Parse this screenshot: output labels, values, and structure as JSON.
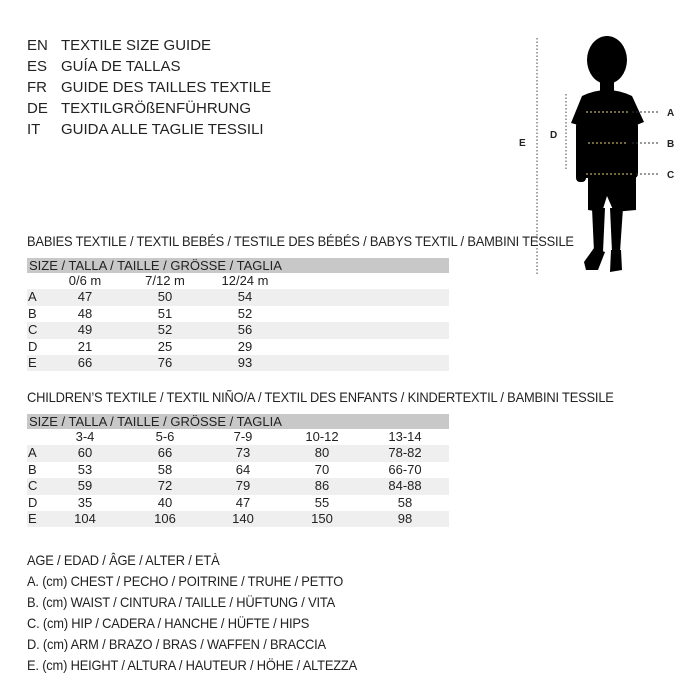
{
  "title_lines": [
    {
      "code": "EN",
      "text": "TEXTILE SIZE GUIDE"
    },
    {
      "code": "ES",
      "text": "GUÍA DE TALLAS"
    },
    {
      "code": "FR",
      "text": "GUIDE DES TAILLES TEXTILE"
    },
    {
      "code": "DE",
      "text": "TEXTILGRÖßENFÜHRUNG"
    },
    {
      "code": "IT",
      "text": "GUIDA ALLE TAGLIE TESSILI"
    }
  ],
  "figure": {
    "labels": {
      "A": "A",
      "B": "B",
      "C": "C",
      "D": "D",
      "E": "E"
    }
  },
  "babies": {
    "title": "BABIES TEXTILE / TEXTIL BEBÉS / TESTILE DES BÉBÉS / BABYS TEXTIL / BAMBINI TESSILE",
    "size_header": "SIZE / TALLA / TAILLE / GRÖSSE / TAGLIA",
    "columns": [
      "0/6 m",
      "7/12 m",
      "12/24 m"
    ],
    "rows": [
      {
        "label": "A",
        "values": [
          "47",
          "50",
          "54"
        ]
      },
      {
        "label": "B",
        "values": [
          "48",
          "51",
          "52"
        ]
      },
      {
        "label": "C",
        "values": [
          "49",
          "52",
          "56"
        ]
      },
      {
        "label": "D",
        "values": [
          "21",
          "25",
          "29"
        ]
      },
      {
        "label": "E",
        "values": [
          "66",
          "76",
          "93"
        ]
      }
    ]
  },
  "children": {
    "title": "CHILDREN’S TEXTILE / TEXTIL NIÑO/A / TEXTIL DES ENFANTS / KINDERTEXTIL / BAMBINI TESSILE",
    "size_header": "SIZE / TALLA / TAILLE / GRÖSSE / TAGLIA",
    "columns": [
      "3-4",
      "5-6",
      "7-9",
      "10-12",
      "13-14"
    ],
    "rows": [
      {
        "label": "A",
        "values": [
          "60",
          "66",
          "73",
          "80",
          "78-82"
        ]
      },
      {
        "label": "B",
        "values": [
          "53",
          "58",
          "64",
          "70",
          "66-70"
        ]
      },
      {
        "label": "C",
        "values": [
          "59",
          "72",
          "79",
          "86",
          "84-88"
        ]
      },
      {
        "label": "D",
        "values": [
          "35",
          "40",
          "47",
          "55",
          "58"
        ]
      },
      {
        "label": "E",
        "values": [
          "104",
          "106",
          "140",
          "150",
          "98"
        ]
      }
    ]
  },
  "legend": [
    "AGE / EDAD / ÂGE / ALTER / ETÀ",
    "A. (cm) CHEST / PECHO / POITRINE / TRUHE / PETTO",
    "B. (cm) WAIST / CINTURA / TAILLE / HÜFTUNG / VITA",
    "C. (cm) HIP / CADERA / HANCHE / HÜFTE / HIPS",
    "D. (cm) ARM / BRAZO / BRAS / WAFFEN / BRACCIA",
    "E. (cm) HEIGHT / ALTURA / HAUTEUR / HÖHE / ALTEZZA"
  ]
}
